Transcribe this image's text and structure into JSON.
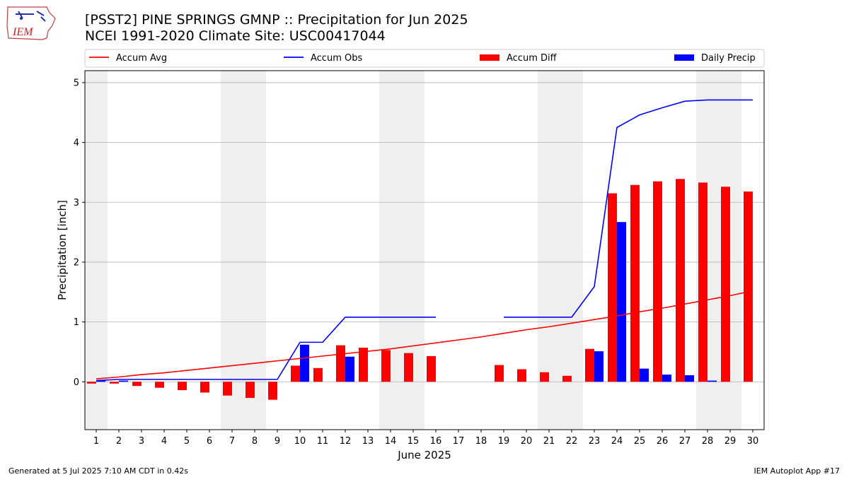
{
  "logo": {
    "text": "IEM",
    "icon": "iowa-state-outline-logo"
  },
  "title_line1": "[PSST2] PINE SPRINGS GMNP :: Precipitation for Jun 2025",
  "title_line2": "NCEI 1991-2020 Climate Site: USC00417044",
  "footer": {
    "generated": "Generated at 5 Jul 2025 7:10 AM CDT in 0.42s",
    "app": "IEM Autoplot App #17"
  },
  "colors": {
    "accum_avg": "#ff0000",
    "accum_obs": "#0000ff",
    "accum_diff": "#ff0000",
    "daily_precip": "#0000ff",
    "weekend_band": "#efefef",
    "grid": "#b0b0b0"
  },
  "chart_data": {
    "type": "bar",
    "xlabel": "June 2025",
    "ylabel": "Precipitation [inch]",
    "xlim": [
      0.5,
      30.5
    ],
    "ylim": [
      -0.8,
      5.2
    ],
    "yticks": [
      0,
      1,
      2,
      3,
      4,
      5
    ],
    "grid": "y",
    "legend_position": "top",
    "categories": [
      "1",
      "2",
      "3",
      "4",
      "5",
      "6",
      "7",
      "8",
      "9",
      "10",
      "11",
      "12",
      "13",
      "14",
      "15",
      "16",
      "17",
      "18",
      "19",
      "20",
      "21",
      "22",
      "23",
      "24",
      "25",
      "26",
      "27",
      "28",
      "29",
      "30"
    ],
    "weekend_days": [
      1,
      7,
      8,
      14,
      15,
      21,
      22,
      28,
      29
    ],
    "series": [
      {
        "name": "Accum Avg",
        "type": "line",
        "values": [
          0.05,
          0.08,
          0.12,
          0.15,
          0.19,
          0.23,
          0.27,
          0.31,
          0.35,
          0.39,
          0.43,
          0.47,
          0.51,
          0.55,
          0.6,
          0.65,
          0.7,
          0.75,
          0.81,
          0.87,
          0.92,
          0.98,
          1.04,
          1.1,
          1.17,
          1.23,
          1.3,
          1.37,
          1.44,
          1.52
        ]
      },
      {
        "name": "Accum Obs",
        "type": "line",
        "values": [
          0.02,
          0.04,
          0.04,
          0.04,
          0.04,
          0.04,
          0.04,
          0.04,
          0.04,
          0.66,
          0.66,
          1.08,
          1.08,
          1.08,
          1.08,
          1.08,
          null,
          null,
          1.08,
          1.08,
          1.08,
          1.08,
          1.59,
          4.25,
          4.46,
          4.58,
          4.69,
          4.71,
          4.71,
          4.71
        ]
      },
      {
        "name": "Accum Diff",
        "type": "bar",
        "values": [
          -0.03,
          -0.03,
          -0.07,
          -0.1,
          -0.14,
          -0.18,
          -0.23,
          -0.27,
          -0.3,
          0.27,
          0.23,
          0.61,
          0.57,
          0.53,
          0.48,
          0.43,
          null,
          null,
          0.28,
          0.21,
          0.16,
          0.1,
          0.55,
          3.15,
          3.29,
          3.35,
          3.39,
          3.33,
          3.26,
          3.18
        ]
      },
      {
        "name": "Daily Precip",
        "type": "bar",
        "values": [
          0.02,
          0.02,
          0,
          0,
          0,
          0,
          0,
          0,
          0,
          0.62,
          0,
          0.42,
          0,
          0,
          0,
          0,
          null,
          null,
          0,
          0,
          0,
          0,
          0.51,
          2.67,
          0.22,
          0.12,
          0.11,
          0.02,
          0,
          0
        ]
      }
    ]
  }
}
